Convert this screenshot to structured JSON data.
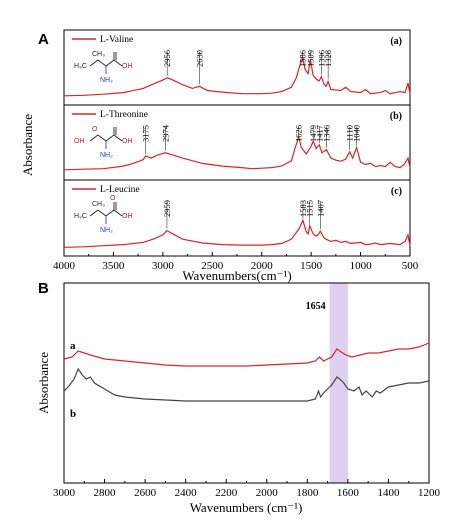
{
  "panel_a_letter": "A",
  "panel_b_letter": "B",
  "chart_data": [
    {
      "type": "line",
      "xlabel": "Wavenumbers(cm⁻¹)",
      "ylabel": "Absorbance",
      "xlim": [
        4000,
        500
      ],
      "xticks": [
        "4000",
        "3500",
        "3000",
        "2500",
        "2000",
        "1500",
        "1000",
        "500"
      ],
      "stacked_panels": true,
      "series_color": "#d62728",
      "series": [
        {
          "name": "L-Valine",
          "sub_label": "(a)",
          "molecule": {
            "groups": [
              "H₃C",
              "CH₃",
              "OH",
              "NH₂"
            ]
          },
          "peaks": [
            "2956",
            "2630",
            "1586",
            "1509",
            "1396",
            "1328"
          ],
          "points": [
            [
              4000,
              0.06
            ],
            [
              3800,
              0.07
            ],
            [
              3600,
              0.09
            ],
            [
              3400,
              0.12
            ],
            [
              3200,
              0.2
            ],
            [
              3100,
              0.28
            ],
            [
              3000,
              0.36
            ],
            [
              2956,
              0.4
            ],
            [
              2900,
              0.36
            ],
            [
              2800,
              0.27
            ],
            [
              2700,
              0.2
            ],
            [
              2630,
              0.24
            ],
            [
              2550,
              0.16
            ],
            [
              2400,
              0.13
            ],
            [
              2200,
              0.1
            ],
            [
              2000,
              0.1
            ],
            [
              1900,
              0.11
            ],
            [
              1800,
              0.14
            ],
            [
              1700,
              0.22
            ],
            [
              1650,
              0.4
            ],
            [
              1620,
              0.6
            ],
            [
              1586,
              0.78
            ],
            [
              1560,
              0.55
            ],
            [
              1530,
              0.48
            ],
            [
              1509,
              0.75
            ],
            [
              1480,
              0.45
            ],
            [
              1450,
              0.38
            ],
            [
              1420,
              0.34
            ],
            [
              1396,
              0.42
            ],
            [
              1370,
              0.28
            ],
            [
              1350,
              0.24
            ],
            [
              1328,
              0.33
            ],
            [
              1300,
              0.18
            ],
            [
              1200,
              0.16
            ],
            [
              1150,
              0.22
            ],
            [
              1100,
              0.14
            ],
            [
              1000,
              0.12
            ],
            [
              950,
              0.18
            ],
            [
              900,
              0.1
            ],
            [
              800,
              0.12
            ],
            [
              750,
              0.16
            ],
            [
              700,
              0.1
            ],
            [
              600,
              0.14
            ],
            [
              550,
              0.12
            ],
            [
              520,
              0.3
            ],
            [
              500,
              0.1
            ]
          ]
        },
        {
          "name": "L-Threonine",
          "sub_label": "(b)",
          "molecule": {
            "groups": [
              "OH",
              "O",
              "OH",
              "NH₂"
            ]
          },
          "peaks": [
            "3175",
            "2974",
            "1626",
            "1479",
            "1417",
            "1346",
            "1110",
            "1040"
          ],
          "points": [
            [
              4000,
              0.08
            ],
            [
              3800,
              0.09
            ],
            [
              3600,
              0.1
            ],
            [
              3400,
              0.15
            ],
            [
              3300,
              0.2
            ],
            [
              3200,
              0.27
            ],
            [
              3175,
              0.34
            ],
            [
              3120,
              0.3
            ],
            [
              3050,
              0.36
            ],
            [
              2974,
              0.4
            ],
            [
              2900,
              0.36
            ],
            [
              2800,
              0.3
            ],
            [
              2600,
              0.2
            ],
            [
              2400,
              0.15
            ],
            [
              2200,
              0.12
            ],
            [
              2100,
              0.1
            ],
            [
              2000,
              0.11
            ],
            [
              1900,
              0.12
            ],
            [
              1800,
              0.15
            ],
            [
              1700,
              0.25
            ],
            [
              1660,
              0.5
            ],
            [
              1626,
              0.7
            ],
            [
              1600,
              0.5
            ],
            [
              1550,
              0.38
            ],
            [
              1500,
              0.52
            ],
            [
              1479,
              0.62
            ],
            [
              1450,
              0.48
            ],
            [
              1417,
              0.55
            ],
            [
              1390,
              0.4
            ],
            [
              1346,
              0.46
            ],
            [
              1300,
              0.3
            ],
            [
              1250,
              0.26
            ],
            [
              1200,
              0.24
            ],
            [
              1150,
              0.28
            ],
            [
              1110,
              0.42
            ],
            [
              1080,
              0.3
            ],
            [
              1040,
              0.5
            ],
            [
              1000,
              0.22
            ],
            [
              950,
              0.18
            ],
            [
              900,
              0.2
            ],
            [
              850,
              0.14
            ],
            [
              800,
              0.16
            ],
            [
              750,
              0.14
            ],
            [
              700,
              0.22
            ],
            [
              650,
              0.14
            ],
            [
              600,
              0.12
            ],
            [
              560,
              0.18
            ],
            [
              520,
              0.3
            ],
            [
              500,
              0.12
            ]
          ]
        },
        {
          "name": "L-Leucine",
          "sub_label": "(c)",
          "molecule": {
            "groups": [
              "H₃C",
              "CH₃",
              "OH",
              "NH₂",
              "O"
            ]
          },
          "peaks": [
            "2959",
            "1583",
            "1515",
            "1407"
          ],
          "points": [
            [
              4000,
              0.05
            ],
            [
              3800,
              0.06
            ],
            [
              3600,
              0.08
            ],
            [
              3400,
              0.1
            ],
            [
              3200,
              0.14
            ],
            [
              3100,
              0.2
            ],
            [
              3000,
              0.28
            ],
            [
              2959,
              0.36
            ],
            [
              2900,
              0.3
            ],
            [
              2800,
              0.2
            ],
            [
              2600,
              0.13
            ],
            [
              2400,
              0.1
            ],
            [
              2200,
              0.09
            ],
            [
              2000,
              0.09
            ],
            [
              1900,
              0.1
            ],
            [
              1800,
              0.12
            ],
            [
              1700,
              0.2
            ],
            [
              1620,
              0.4
            ],
            [
              1583,
              0.55
            ],
            [
              1550,
              0.34
            ],
            [
              1530,
              0.3
            ],
            [
              1515,
              0.45
            ],
            [
              1480,
              0.3
            ],
            [
              1450,
              0.26
            ],
            [
              1430,
              0.28
            ],
            [
              1407,
              0.35
            ],
            [
              1370,
              0.22
            ],
            [
              1350,
              0.2
            ],
            [
              1300,
              0.16
            ],
            [
              1250,
              0.18
            ],
            [
              1200,
              0.14
            ],
            [
              1150,
              0.16
            ],
            [
              1100,
              0.12
            ],
            [
              1000,
              0.14
            ],
            [
              950,
              0.1
            ],
            [
              900,
              0.11
            ],
            [
              850,
              0.13
            ],
            [
              800,
              0.1
            ],
            [
              700,
              0.12
            ],
            [
              600,
              0.1
            ],
            [
              550,
              0.16
            ],
            [
              520,
              0.28
            ],
            [
              500,
              0.08
            ]
          ]
        }
      ]
    },
    {
      "type": "line",
      "xlabel": "Wavenumbers (cm⁻¹)",
      "ylabel": "Absorbance",
      "xlim": [
        3000,
        1200
      ],
      "xticks": [
        "3000",
        "2800",
        "2600",
        "2400",
        "2200",
        "2000",
        "1800",
        "1600",
        "1400",
        "1200"
      ],
      "highlight_band": {
        "label": "1654",
        "x_from": 1690,
        "x_to": 1600,
        "color": "#d9c8ee"
      },
      "series": [
        {
          "name": "a",
          "color": "#d62728",
          "points": [
            [
              3000,
              0.62
            ],
            [
              2960,
              0.63
            ],
            [
              2930,
              0.66
            ],
            [
              2900,
              0.65
            ],
            [
              2870,
              0.64
            ],
            [
              2800,
              0.62
            ],
            [
              2700,
              0.61
            ],
            [
              2600,
              0.6
            ],
            [
              2500,
              0.59
            ],
            [
              2400,
              0.585
            ],
            [
              2300,
              0.585
            ],
            [
              2200,
              0.585
            ],
            [
              2100,
              0.585
            ],
            [
              2000,
              0.59
            ],
            [
              1900,
              0.595
            ],
            [
              1800,
              0.6
            ],
            [
              1760,
              0.61
            ],
            [
              1740,
              0.63
            ],
            [
              1720,
              0.61
            ],
            [
              1700,
              0.62
            ],
            [
              1680,
              0.63
            ],
            [
              1654,
              0.67
            ],
            [
              1640,
              0.66
            ],
            [
              1610,
              0.64
            ],
            [
              1580,
              0.63
            ],
            [
              1540,
              0.64
            ],
            [
              1500,
              0.65
            ],
            [
              1450,
              0.65
            ],
            [
              1400,
              0.66
            ],
            [
              1350,
              0.67
            ],
            [
              1300,
              0.67
            ],
            [
              1250,
              0.68
            ],
            [
              1200,
              0.7
            ]
          ]
        },
        {
          "name": "b",
          "color": "#444444",
          "points": [
            [
              3000,
              0.46
            ],
            [
              2980,
              0.48
            ],
            [
              2950,
              0.52
            ],
            [
              2930,
              0.57
            ],
            [
              2910,
              0.54
            ],
            [
              2890,
              0.52
            ],
            [
              2870,
              0.53
            ],
            [
              2850,
              0.5
            ],
            [
              2800,
              0.47
            ],
            [
              2750,
              0.44
            ],
            [
              2700,
              0.43
            ],
            [
              2600,
              0.42
            ],
            [
              2500,
              0.415
            ],
            [
              2400,
              0.41
            ],
            [
              2300,
              0.41
            ],
            [
              2200,
              0.41
            ],
            [
              2100,
              0.41
            ],
            [
              2000,
              0.41
            ],
            [
              1900,
              0.41
            ],
            [
              1800,
              0.41
            ],
            [
              1760,
              0.42
            ],
            [
              1745,
              0.46
            ],
            [
              1735,
              0.43
            ],
            [
              1720,
              0.45
            ],
            [
              1700,
              0.47
            ],
            [
              1680,
              0.49
            ],
            [
              1654,
              0.53
            ],
            [
              1640,
              0.52
            ],
            [
              1620,
              0.5
            ],
            [
              1600,
              0.47
            ],
            [
              1570,
              0.46
            ],
            [
              1545,
              0.48
            ],
            [
              1530,
              0.44
            ],
            [
              1510,
              0.46
            ],
            [
              1480,
              0.43
            ],
            [
              1460,
              0.46
            ],
            [
              1440,
              0.45
            ],
            [
              1400,
              0.48
            ],
            [
              1350,
              0.49
            ],
            [
              1300,
              0.5
            ],
            [
              1250,
              0.5
            ],
            [
              1200,
              0.51
            ]
          ]
        }
      ]
    }
  ]
}
